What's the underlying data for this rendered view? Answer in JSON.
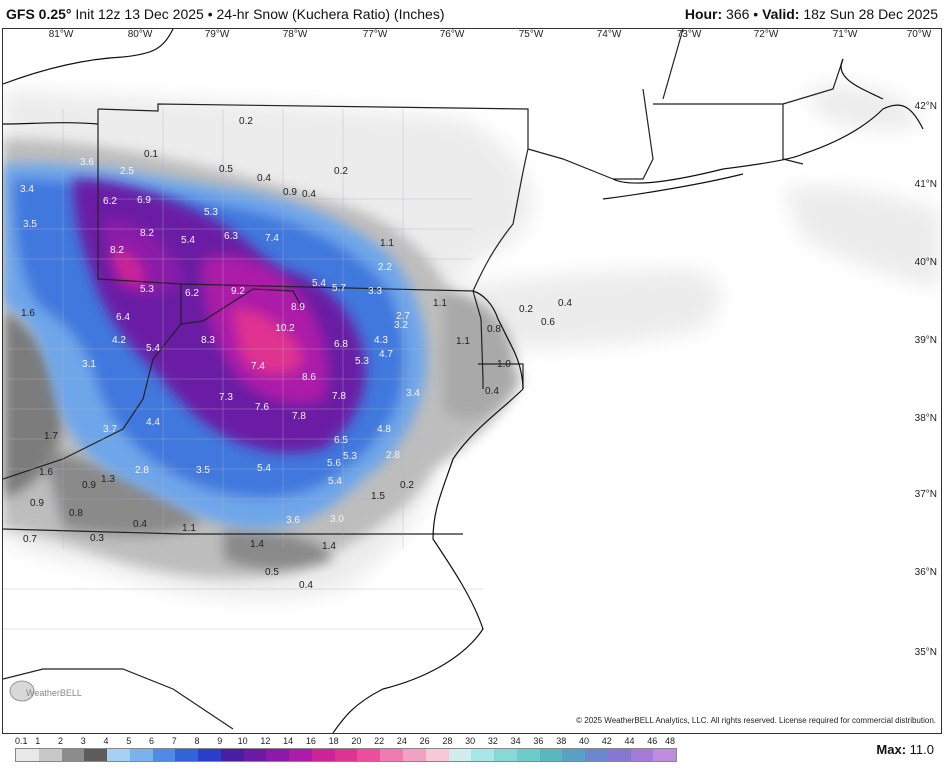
{
  "header": {
    "model": "GFS 0.25°",
    "init": "Init 12z 13 Dec 2025",
    "product": "24-hr Snow (Kuchera Ratio) (Inches)",
    "hour_label": "Hour:",
    "hour_value": "366",
    "separator": "•",
    "valid_label": "Valid:",
    "valid_value": "18z Sun 28 Dec 2025"
  },
  "map": {
    "lon_labels": [
      "81°W",
      "80°W",
      "79°W",
      "78°W",
      "77°W",
      "76°W",
      "75°W",
      "74°W",
      "73°W",
      "72°W",
      "71°W",
      "70°W"
    ],
    "lat_labels": [
      "42°N",
      "41°N",
      "40°N",
      "39°N",
      "38°N",
      "37°N",
      "36°N",
      "35°N"
    ],
    "values": [
      "0.2",
      "0.1",
      "3.6",
      "2.5",
      "0.5",
      "0.4",
      "0.9",
      "0.4",
      "0.2",
      "3.4",
      "6.2",
      "6.9",
      "5.3",
      "3.5",
      "8.2",
      "5.4",
      "6.3",
      "7.4",
      "1.1",
      "8.2",
      "2.2",
      "5.3",
      "6.2",
      "9.2",
      "5.4",
      "5.7",
      "3.3",
      "1.1",
      "1.6",
      "6.4",
      "8.9",
      "2.7",
      "0.2",
      "0.4",
      "0.8",
      "10.2",
      "3.2",
      "0.6",
      "4.2",
      "5.4",
      "8.3",
      "6.8",
      "4.3",
      "1.1",
      "3.1",
      "4.7",
      "5.3",
      "1.0",
      "7.4",
      "8.6",
      "3.4",
      "0.4",
      "7.3",
      "7.8",
      "7.6",
      "7.8",
      "3.7",
      "4.4",
      "4.8",
      "1.7",
      "6.5",
      "5.3",
      "1.6",
      "2.8",
      "3.5",
      "5.4",
      "5.6",
      "2.8",
      "0.9",
      "1.3",
      "5.4",
      "0.2",
      "0.9",
      "1.5",
      "0.8",
      "0.4",
      "1.1",
      "3.6",
      "3.0",
      "0.3",
      "0.7",
      "1.4",
      "1.4",
      "0.5",
      "0.4"
    ]
  },
  "copyright": "© 2025 WeatherBELL Analytics, LLC. All rights reserved. License required for commercial distribution.",
  "logo_text": "WeatherBELL",
  "legend": {
    "ticks": [
      "0.1",
      "1",
      "2",
      "3",
      "4",
      "5",
      "6",
      "7",
      "8",
      "9",
      "10",
      "12",
      "14",
      "16",
      "18",
      "20",
      "22",
      "24",
      "26",
      "28",
      "30",
      "32",
      "34",
      "36",
      "38",
      "40",
      "42",
      "44",
      "46",
      "48"
    ],
    "colors": [
      "#e8e8e8",
      "#c8c8c8",
      "#8c8c8c",
      "#5c5c5c",
      "#a8d0f4",
      "#7ab2ec",
      "#4f8ae6",
      "#3064d8",
      "#2a3ec8",
      "#4a1ea0",
      "#6a1aa4",
      "#8c1aa8",
      "#ac1ca8",
      "#cc2498",
      "#e03290",
      "#ee4c9c",
      "#f07ab2",
      "#f4a0c4",
      "#f6c8d8",
      "#d0eef0",
      "#a8e6e8",
      "#88d8d8",
      "#6ccccc",
      "#58b8c0",
      "#5aa0c4",
      "#6c88cc",
      "#8478d0",
      "#a47cd8",
      "#c08ce0"
    ],
    "max_label": "Max:",
    "max_value": "11.0"
  }
}
